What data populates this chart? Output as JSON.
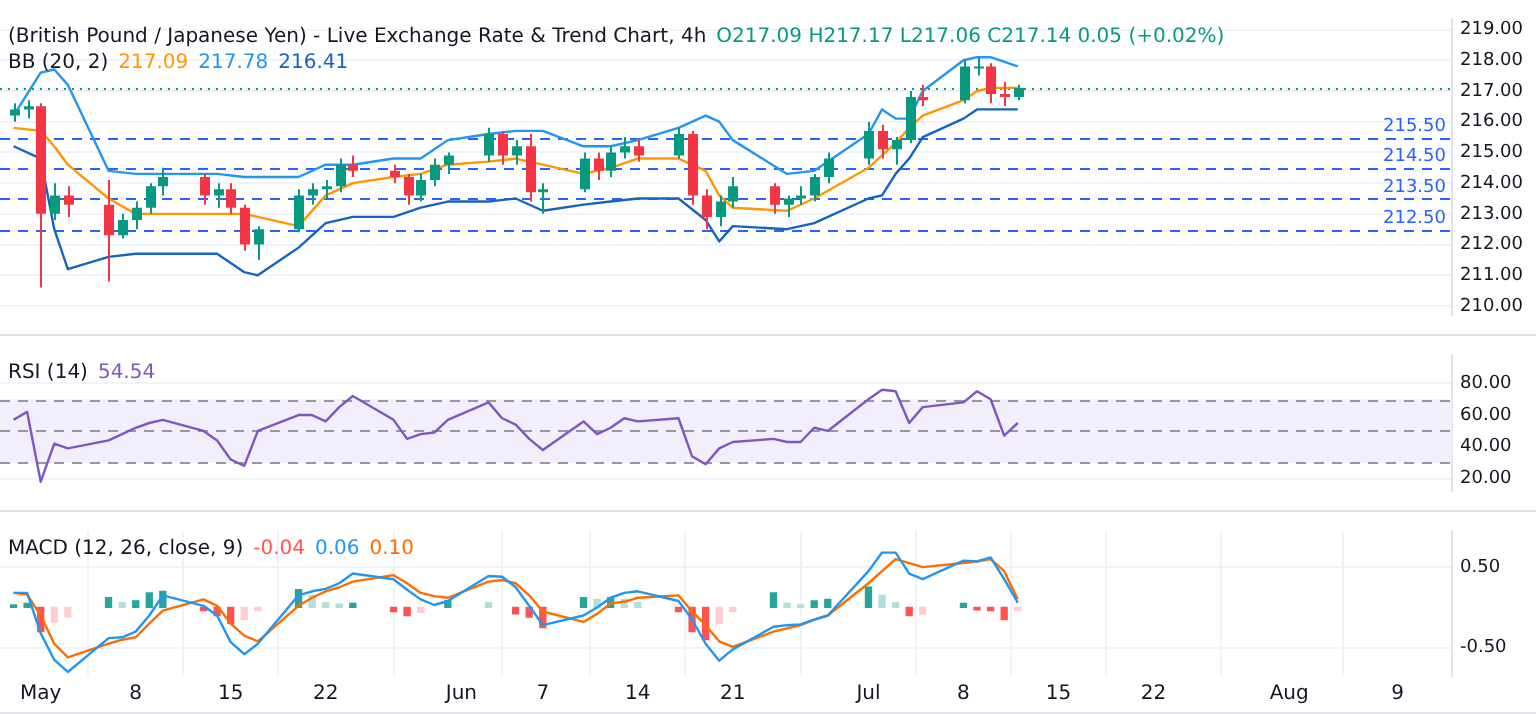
{
  "chart_data": [
    {
      "type": "candlestick",
      "title": "(British Pound / Japanese Yen) - Live Exchange Rate & Trend Chart, 4h",
      "subtitle": "O217.09 H217.17 L217.06 C217.14 0.05 (+0.02%)",
      "legend_title": "BB (20, 2)",
      "legend": "top left",
      "grid": true,
      "marker": "none",
      "tick_labels": "y",
      "x": [
        "--04-29",
        "--04-30",
        "--05-01",
        "--05-02",
        "--05-03",
        "--05-06",
        "--05-07",
        "--05-08",
        "--05-09",
        "--05-10",
        "--05-13",
        "--05-14",
        "--05-15",
        "--05-16",
        "--05-17",
        "--05-20",
        "--05-21",
        "--05-22",
        "--05-23",
        "--05-24",
        "--05-27",
        "--05-28",
        "--05-29",
        "--05-30",
        "--05-31",
        "--06-03",
        "--06-04",
        "--06-05",
        "--06-06",
        "--06-07",
        "--06-10",
        "--06-11",
        "--06-12",
        "--06-13",
        "--06-14",
        "--06-17",
        "--06-18",
        "--06-19",
        "--06-20",
        "--06-21",
        "--06-24",
        "--06-25",
        "--06-26",
        "--06-27",
        "--06-28",
        "--07-01",
        "--07-02",
        "--07-03",
        "--07-04",
        "--07-05",
        "--07-08",
        "--07-09",
        "--07-10",
        "--07-11",
        "--07-12"
      ],
      "ohlc": [
        [
          216.2,
          216.6,
          216.0,
          216.4
        ],
        [
          216.4,
          216.7,
          216.1,
          216.5
        ],
        [
          216.5,
          216.6,
          210.6,
          213.0
        ],
        [
          213.0,
          214.0,
          212.8,
          213.6
        ],
        [
          213.6,
          213.9,
          212.9,
          213.3
        ],
        [
          213.3,
          214.1,
          210.8,
          212.3
        ],
        [
          212.3,
          213.0,
          212.2,
          212.8
        ],
        [
          212.8,
          213.4,
          212.5,
          213.2
        ],
        [
          213.2,
          214.0,
          213.0,
          213.9
        ],
        [
          213.9,
          214.5,
          213.6,
          214.2
        ],
        [
          214.2,
          214.3,
          213.3,
          213.6
        ],
        [
          213.6,
          214.0,
          213.2,
          213.8
        ],
        [
          213.8,
          214.0,
          213.0,
          213.2
        ],
        [
          213.2,
          213.3,
          211.8,
          212.0
        ],
        [
          212.0,
          212.6,
          211.5,
          212.5
        ],
        [
          212.5,
          213.8,
          212.4,
          213.6
        ],
        [
          213.6,
          214.0,
          213.3,
          213.8
        ],
        [
          213.8,
          214.1,
          213.5,
          213.9
        ],
        [
          213.9,
          214.8,
          213.7,
          214.6
        ],
        [
          214.6,
          214.9,
          214.2,
          214.4
        ],
        [
          214.4,
          214.6,
          214.0,
          214.2
        ],
        [
          214.2,
          214.3,
          213.3,
          213.6
        ],
        [
          213.6,
          214.3,
          213.4,
          214.1
        ],
        [
          214.1,
          214.8,
          213.9,
          214.6
        ],
        [
          214.6,
          215.0,
          214.3,
          214.9
        ],
        [
          214.9,
          215.8,
          214.7,
          215.6
        ],
        [
          215.6,
          215.7,
          214.6,
          214.9
        ],
        [
          214.9,
          215.4,
          214.6,
          215.2
        ],
        [
          215.2,
          215.6,
          213.4,
          213.7
        ],
        [
          213.7,
          214.0,
          213.0,
          213.8
        ],
        [
          213.8,
          215.0,
          213.7,
          214.8
        ],
        [
          214.8,
          215.0,
          214.1,
          214.4
        ],
        [
          214.4,
          215.2,
          214.2,
          215.0
        ],
        [
          215.0,
          215.5,
          214.8,
          215.2
        ],
        [
          215.2,
          215.4,
          214.7,
          214.9
        ],
        [
          214.9,
          215.8,
          214.8,
          215.6
        ],
        [
          215.6,
          215.7,
          213.3,
          213.6
        ],
        [
          213.6,
          213.8,
          212.5,
          212.9
        ],
        [
          212.9,
          213.6,
          212.6,
          213.4
        ],
        [
          213.4,
          214.2,
          213.2,
          213.9
        ],
        [
          213.9,
          214.0,
          213.0,
          213.3
        ],
        [
          213.3,
          213.6,
          212.9,
          213.5
        ],
        [
          213.5,
          213.9,
          213.3,
          213.6
        ],
        [
          213.6,
          214.3,
          213.4,
          214.2
        ],
        [
          214.2,
          215.0,
          214.0,
          214.8
        ],
        [
          214.8,
          216.0,
          214.6,
          215.7
        ],
        [
          215.7,
          215.9,
          214.8,
          215.1
        ],
        [
          215.1,
          215.5,
          214.6,
          215.4
        ],
        [
          215.4,
          217.0,
          215.3,
          216.8
        ],
        [
          216.8,
          217.2,
          216.5,
          216.7
        ],
        [
          216.7,
          218.0,
          216.6,
          217.8
        ],
        [
          217.8,
          218.1,
          217.5,
          217.8
        ],
        [
          217.8,
          217.9,
          216.6,
          216.9
        ],
        [
          216.9,
          217.3,
          216.5,
          216.8
        ],
        [
          216.8,
          217.2,
          216.7,
          217.1
        ]
      ],
      "colors": [
        "#089981",
        "#089981",
        "#f23645",
        "#089981",
        "#f23645",
        "#f23645",
        "#089981",
        "#089981",
        "#089981",
        "#089981",
        "#f23645",
        "#089981",
        "#f23645",
        "#f23645",
        "#089981",
        "#089981",
        "#089981",
        "#089981",
        "#089981",
        "#f23645",
        "#f23645",
        "#f23645",
        "#089981",
        "#089981",
        "#089981",
        "#089981",
        "#f23645",
        "#089981",
        "#f23645",
        "#089981",
        "#089981",
        "#f23645",
        "#089981",
        "#089981",
        "#f23645",
        "#089981",
        "#f23645",
        "#f23645",
        "#089981",
        "#089981",
        "#f23645",
        "#089981",
        "#089981",
        "#089981",
        "#089981",
        "#089981",
        "#f23645",
        "#089981",
        "#089981",
        "#f23645",
        "#089981",
        "#089981",
        "#f23645",
        "#f23645",
        "#089981"
      ],
      "series": [
        {
          "name": "217.09",
          "type": "line",
          "color": "#ff9800",
          "x": [
            "--04-29",
            "--05-01",
            "--05-02",
            "--05-03",
            "--05-06",
            "--05-08",
            "--05-10",
            "--05-14",
            "--05-16",
            "--05-17",
            "--05-20",
            "--05-22",
            "--05-24",
            "--05-27",
            "--05-29",
            "--05-31",
            "--06-03",
            "--06-05",
            "--06-07",
            "--06-10",
            "--06-12",
            "--06-14",
            "--06-17",
            "--06-19",
            "--06-20",
            "--06-21",
            "--06-25",
            "--06-27",
            "--07-01",
            "--07-02",
            "--07-03",
            "--07-04",
            "--07-05",
            "--07-08",
            "--07-09",
            "--07-10",
            "--07-12"
          ],
          "values": [
            215.8,
            215.7,
            215.2,
            214.6,
            213.5,
            213.0,
            213.0,
            213.0,
            213.0,
            212.9,
            212.6,
            213.6,
            214.0,
            214.2,
            214.3,
            214.6,
            214.7,
            214.8,
            214.6,
            214.3,
            214.5,
            214.8,
            214.8,
            214.4,
            213.6,
            213.2,
            213.1,
            213.5,
            214.5,
            214.9,
            215.3,
            215.8,
            216.2,
            216.7,
            217.0,
            217.1,
            217.1
          ]
        },
        {
          "name": "217.78",
          "type": "line",
          "color": "#2196f3",
          "x": [
            "--04-29",
            "--05-01",
            "--05-02",
            "--05-03",
            "--05-06",
            "--05-08",
            "--05-10",
            "--05-14",
            "--05-16",
            "--05-17",
            "--05-20",
            "--05-22",
            "--05-24",
            "--05-27",
            "--05-29",
            "--05-31",
            "--06-03",
            "--06-05",
            "--06-07",
            "--06-10",
            "--06-12",
            "--06-14",
            "--06-17",
            "--06-19",
            "--06-20",
            "--06-21",
            "--06-25",
            "--06-27",
            "--07-01",
            "--07-02",
            "--07-03",
            "--07-04",
            "--07-05",
            "--07-08",
            "--07-09",
            "--07-10",
            "--07-12"
          ],
          "values": [
            216.2,
            217.6,
            217.7,
            217.2,
            214.4,
            214.3,
            214.3,
            214.3,
            214.2,
            214.2,
            214.2,
            214.6,
            214.6,
            214.8,
            214.8,
            215.4,
            215.6,
            215.7,
            215.7,
            215.2,
            215.2,
            215.4,
            215.8,
            216.2,
            216.0,
            215.4,
            214.3,
            214.4,
            215.6,
            216.4,
            216.1,
            216.1,
            217.0,
            218.0,
            218.1,
            218.1,
            217.8
          ]
        },
        {
          "name": "216.41",
          "type": "line",
          "color": "#1565c0",
          "x": [
            "--04-29",
            "--05-01",
            "--05-02",
            "--05-03",
            "--05-06",
            "--05-08",
            "--05-10",
            "--05-14",
            "--05-16",
            "--05-17",
            "--05-20",
            "--05-22",
            "--05-24",
            "--05-27",
            "--05-29",
            "--05-31",
            "--06-03",
            "--06-05",
            "--06-07",
            "--06-10",
            "--06-12",
            "--06-14",
            "--06-17",
            "--06-19",
            "--06-20",
            "--06-21",
            "--06-25",
            "--06-27",
            "--07-01",
            "--07-02",
            "--07-03",
            "--07-04",
            "--07-05",
            "--07-08",
            "--07-09",
            "--07-10",
            "--07-12"
          ],
          "values": [
            215.2,
            214.8,
            212.5,
            211.2,
            211.6,
            211.7,
            211.7,
            211.7,
            211.1,
            211.0,
            211.9,
            212.7,
            212.9,
            212.9,
            213.2,
            213.4,
            213.4,
            213.5,
            213.1,
            213.3,
            213.4,
            213.5,
            213.5,
            212.8,
            212.1,
            212.6,
            212.5,
            212.7,
            213.5,
            213.6,
            214.3,
            214.8,
            215.5,
            216.1,
            216.4,
            216.4,
            216.4
          ]
        }
      ],
      "ref_lines": [
        {
          "axis": "y",
          "value": 215.5,
          "label": "215.50",
          "color": "#2962ff",
          "line_style": "dashed"
        },
        {
          "axis": "y",
          "value": 214.5,
          "label": "214.50",
          "color": "#2962ff",
          "line_style": "dashed"
        },
        {
          "axis": "y",
          "value": 213.5,
          "label": "213.50",
          "color": "#2962ff",
          "line_style": "dashed"
        },
        {
          "axis": "y",
          "value": 212.5,
          "label": "212.50",
          "color": "#2962ff",
          "line_style": "dashed"
        },
        {
          "axis": "y",
          "value": 217.1,
          "color": "#089981",
          "line_style": "dotted"
        }
      ],
      "xlim": [
        "--04-28",
        "--08-13"
      ],
      "xticks": [
        {
          "value": "--05-01",
          "label": null
        },
        {
          "value": "--05-08",
          "label": null
        },
        {
          "value": "--05-15",
          "label": null
        },
        {
          "value": "--05-22",
          "label": null
        },
        {
          "value": "--06-01",
          "label": null
        },
        {
          "value": "--06-07",
          "label": null
        },
        {
          "value": "--06-14",
          "label": null
        },
        {
          "value": "--06-21",
          "label": null
        },
        {
          "value": "--07-01",
          "label": null
        },
        {
          "value": "--07-08",
          "label": null
        },
        {
          "value": "--07-15",
          "label": null
        },
        {
          "value": "--07-22",
          "label": null
        },
        {
          "value": "--08-01",
          "label": null
        },
        {
          "value": "--08-09",
          "label": null
        }
      ],
      "ylim": [
        209.7,
        219.35
      ],
      "yticks": [
        {
          "value": 210,
          "label": "210.00"
        },
        {
          "value": 211,
          "label": "211.00"
        },
        {
          "value": 212,
          "label": "212.00"
        },
        {
          "value": 213,
          "label": "213.00"
        },
        {
          "value": 214,
          "label": "214.00"
        },
        {
          "value": 215,
          "label": "215.00"
        },
        {
          "value": 216,
          "label": "216.00"
        },
        {
          "value": 217,
          "label": "217.00"
        },
        {
          "value": 218,
          "label": "218.00"
        },
        {
          "value": 219,
          "label": "219.00"
        }
      ]
    },
    {
      "type": "line",
      "title": "RSI (14)",
      "legend": "top left",
      "grid": true,
      "marker": "none",
      "tick_labels": "y",
      "x": [
        "--04-29",
        "--04-30",
        "--05-01",
        "--05-02",
        "--05-03",
        "--05-06",
        "--05-07",
        "--05-08",
        "--05-09",
        "--05-10",
        "--05-13",
        "--05-14",
        "--05-15",
        "--05-16",
        "--05-17",
        "--05-20",
        "--05-21",
        "--05-22",
        "--05-23",
        "--05-24",
        "--05-27",
        "--05-28",
        "--05-29",
        "--05-30",
        "--05-31",
        "--06-03",
        "--06-04",
        "--06-05",
        "--06-06",
        "--06-07",
        "--06-10",
        "--06-11",
        "--06-12",
        "--06-13",
        "--06-14",
        "--06-17",
        "--06-18",
        "--06-19",
        "--06-20",
        "--06-21",
        "--06-24",
        "--06-25",
        "--06-26",
        "--06-27",
        "--06-28",
        "--07-01",
        "--07-02",
        "--07-03",
        "--07-04",
        "--07-05",
        "--07-08",
        "--07-09",
        "--07-10",
        "--07-11",
        "--07-12"
      ],
      "series": [
        {
          "name": "54.54",
          "color": "#7e57c2",
          "values": [
            57,
            62,
            18,
            42,
            39,
            44,
            48,
            52,
            55,
            57,
            50,
            44,
            32,
            28,
            50,
            60,
            60,
            56,
            65,
            72,
            57,
            45,
            48,
            49,
            57,
            68,
            58,
            54,
            45,
            38,
            56,
            48,
            52,
            58,
            56,
            58,
            34,
            29,
            39,
            43,
            45,
            43,
            43,
            52,
            50,
            70,
            76,
            75,
            55,
            65,
            68,
            75,
            70,
            47,
            55
          ]
        }
      ],
      "bands": [
        {
          "axis": "y",
          "from": 30,
          "to": 70,
          "color": "#f2eefb"
        }
      ],
      "ref_lines": [
        {
          "axis": "y",
          "value": 70,
          "color": "#9598a1",
          "line_style": "dashed"
        },
        {
          "axis": "y",
          "value": 50,
          "color": "#9598a1",
          "line_style": "dashed"
        },
        {
          "axis": "y",
          "value": 30,
          "color": "#9598a1",
          "line_style": "dashed"
        }
      ],
      "xlim": [
        "--04-28",
        "--08-13"
      ],
      "xticks": [
        {
          "value": "--05-01",
          "label": null
        },
        {
          "value": "--05-08",
          "label": null
        },
        {
          "value": "--05-15",
          "label": null
        },
        {
          "value": "--05-22",
          "label": null
        },
        {
          "value": "--06-01",
          "label": null
        },
        {
          "value": "--06-07",
          "label": null
        },
        {
          "value": "--06-14",
          "label": null
        },
        {
          "value": "--06-21",
          "label": null
        },
        {
          "value": "--07-01",
          "label": null
        },
        {
          "value": "--07-08",
          "label": null
        },
        {
          "value": "--07-15",
          "label": null
        },
        {
          "value": "--07-22",
          "label": null
        },
        {
          "value": "--08-01",
          "label": null
        },
        {
          "value": "--08-09",
          "label": null
        }
      ],
      "ylim": [
        12,
        98
      ],
      "yticks": [
        {
          "value": 20,
          "label": "20.00"
        },
        {
          "value": 40,
          "label": "40.00"
        },
        {
          "value": 60,
          "label": "60.00"
        },
        {
          "value": 80,
          "label": "80.00"
        }
      ]
    },
    {
      "type": "line",
      "title": "MACD (12, 26, close, 9)",
      "legend": "top left",
      "grid": true,
      "marker": "none",
      "x": [
        "--04-29",
        "--04-30",
        "--05-01",
        "--05-02",
        "--05-03",
        "--05-06",
        "--05-07",
        "--05-08",
        "--05-09",
        "--05-10",
        "--05-13",
        "--05-14",
        "--05-15",
        "--05-16",
        "--05-17",
        "--05-20",
        "--05-21",
        "--05-22",
        "--05-23",
        "--05-24",
        "--05-27",
        "--05-28",
        "--05-29",
        "--05-30",
        "--05-31",
        "--06-03",
        "--06-04",
        "--06-05",
        "--06-06",
        "--06-07",
        "--06-10",
        "--06-11",
        "--06-12",
        "--06-13",
        "--06-14",
        "--06-17",
        "--06-18",
        "--06-19",
        "--06-20",
        "--06-21",
        "--06-24",
        "--06-25",
        "--06-26",
        "--06-27",
        "--06-28",
        "--07-01",
        "--07-02",
        "--07-03",
        "--07-04",
        "--07-05",
        "--07-08",
        "--07-09",
        "--07-10",
        "--07-11",
        "--07-12"
      ],
      "series": [
        {
          "name": "-0.04",
          "type": "bar",
          "color": "#ff5252",
          "values": [
            0.03,
            0.05,
            -0.3,
            -0.18,
            -0.12,
            0.12,
            0.06,
            0.08,
            0.18,
            0.2,
            -0.04,
            -0.1,
            -0.2,
            -0.15,
            -0.04,
            0.22,
            0.15,
            0.06,
            0.04,
            0.05,
            -0.05,
            -0.1,
            -0.06,
            null,
            0.08,
            0.06,
            null,
            -0.08,
            -0.12,
            -0.25,
            0.12,
            0.1,
            0.12,
            0.1,
            0.06,
            -0.05,
            -0.3,
            -0.4,
            -0.2,
            -0.05,
            0.18,
            0.05,
            0.03,
            0.08,
            0.1,
            0.25,
            0.15,
            0.06,
            -0.1,
            -0.08,
            0.05,
            -0.03,
            -0.04,
            -0.15,
            -0.04
          ],
          "colors": [
            "#26a69a",
            "#26a69a",
            "#ff5252",
            "#ffcdd2",
            "#ffcdd2",
            "#26a69a",
            "#b2dfdb",
            "#26a69a",
            "#26a69a",
            "#26a69a",
            "#ff5252",
            "#ff5252",
            "#ff5252",
            "#ffcdd2",
            "#ffcdd2",
            "#26a69a",
            "#b2dfdb",
            "#b2dfdb",
            "#b2dfdb",
            "#26a69a",
            "#ff5252",
            "#ff5252",
            "#ffcdd2",
            "#26a69a",
            "#26a69a",
            "#b2dfdb",
            "#b2dfdb",
            "#ff5252",
            "#ff5252",
            "#ff5252",
            "#26a69a",
            "#b2dfdb",
            "#26a69a",
            "#b2dfdb",
            "#b2dfdb",
            "#ff5252",
            "#ff5252",
            "#ff5252",
            "#ffcdd2",
            "#ffcdd2",
            "#26a69a",
            "#b2dfdb",
            "#b2dfdb",
            "#26a69a",
            "#26a69a",
            "#26a69a",
            "#b2dfdb",
            "#b2dfdb",
            "#ff5252",
            "#ffcdd2",
            "#26a69a",
            "#ff5252",
            "#ff5252",
            "#ff5252",
            "#ffcdd2"
          ]
        },
        {
          "name": "0.06",
          "type": "line",
          "color": "#2196f3",
          "values": [
            0.18,
            0.18,
            -0.32,
            -0.65,
            -0.8,
            -0.38,
            -0.37,
            -0.3,
            -0.1,
            0.15,
            0.02,
            -0.1,
            -0.43,
            -0.58,
            -0.45,
            0.15,
            0.2,
            0.23,
            0.3,
            0.42,
            0.35,
            0.22,
            0.1,
            0.03,
            0.08,
            0.39,
            0.38,
            0.25,
            0.02,
            -0.22,
            -0.1,
            0,
            0.12,
            0.18,
            0.2,
            0.08,
            -0.15,
            -0.45,
            -0.66,
            -0.52,
            -0.24,
            -0.22,
            -0.21,
            -0.15,
            -0.1,
            0.45,
            0.68,
            0.68,
            0.42,
            0.35,
            0.58,
            0.57,
            0.62,
            0.35,
            0.06
          ]
        },
        {
          "name": "0.10",
          "type": "line",
          "color": "#ff6d00",
          "values": [
            0.18,
            0.16,
            -0.1,
            -0.45,
            -0.62,
            -0.45,
            -0.4,
            -0.37,
            -0.2,
            -0.04,
            0.1,
            0.02,
            -0.2,
            -0.35,
            -0.42,
            0.02,
            0.12,
            0.2,
            0.25,
            0.32,
            0.4,
            0.3,
            0.18,
            0.14,
            0.12,
            0.32,
            0.34,
            0.3,
            0.15,
            -0.05,
            -0.18,
            -0.08,
            0.05,
            0.07,
            0.12,
            0.15,
            -0.05,
            -0.22,
            -0.42,
            -0.49,
            -0.3,
            -0.26,
            -0.22,
            -0.15,
            -0.1,
            0.3,
            0.45,
            0.6,
            0.55,
            0.5,
            0.55,
            0.57,
            0.6,
            0.45,
            0.1
          ]
        }
      ],
      "xlim": [
        "--04-28",
        "--08-13"
      ],
      "xticks": [
        {
          "value": "--05-01",
          "label": "May"
        },
        {
          "value": "--05-08",
          "label": "8"
        },
        {
          "value": "--05-15",
          "label": "15"
        },
        {
          "value": "--05-22",
          "label": "22"
        },
        {
          "value": "--06-01",
          "label": "Jun"
        },
        {
          "value": "--06-07",
          "label": "7"
        },
        {
          "value": "--06-14",
          "label": "14"
        },
        {
          "value": "--06-21",
          "label": "21"
        },
        {
          "value": "--07-01",
          "label": "Jul"
        },
        {
          "value": "--07-08",
          "label": "8"
        },
        {
          "value": "--07-15",
          "label": "15"
        },
        {
          "value": "--07-22",
          "label": "22"
        },
        {
          "value": "--08-01",
          "label": "Aug"
        },
        {
          "value": "--08-09",
          "label": "9"
        }
      ],
      "ylim": [
        -0.85,
        0.95
      ],
      "yticks": [
        {
          "value": 0.5,
          "label": "0.50"
        },
        {
          "value": -0.5,
          "label": "-0.50"
        }
      ]
    }
  ]
}
